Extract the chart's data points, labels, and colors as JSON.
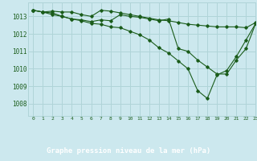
{
  "title": "Graphe pression niveau de la mer (hPa)",
  "bg_color": "#cce8ee",
  "grid_color": "#b0d4d8",
  "line_color": "#1a5c1a",
  "xlim": [
    -0.5,
    23
  ],
  "ylim": [
    1007.3,
    1013.8
  ],
  "yticks": [
    1008,
    1009,
    1010,
    1011,
    1012,
    1013
  ],
  "xticks": [
    0,
    1,
    2,
    3,
    4,
    5,
    6,
    7,
    8,
    9,
    10,
    11,
    12,
    13,
    14,
    15,
    16,
    17,
    18,
    19,
    20,
    21,
    22,
    23
  ],
  "series1": [
    1013.35,
    1013.25,
    1013.3,
    1013.25,
    1013.25,
    1013.1,
    1013.0,
    1013.35,
    1013.3,
    1013.2,
    1013.1,
    1013.0,
    1012.9,
    1012.8,
    1012.75,
    1012.65,
    1012.55,
    1012.5,
    1012.45,
    1012.4,
    1012.4,
    1012.4,
    1012.35,
    1012.65
  ],
  "series2": [
    1013.35,
    1013.25,
    1013.2,
    1013.0,
    1012.85,
    1012.8,
    1012.7,
    1012.8,
    1012.75,
    1013.1,
    1013.0,
    1012.95,
    1012.85,
    1012.75,
    1012.85,
    1011.15,
    1011.0,
    1010.5,
    1010.1,
    1009.7,
    1009.7,
    1010.5,
    1011.15,
    1012.6
  ],
  "series3": [
    1013.35,
    1013.25,
    1013.1,
    1013.0,
    1012.85,
    1012.75,
    1012.6,
    1012.55,
    1012.4,
    1012.35,
    1012.15,
    1011.95,
    1011.65,
    1011.2,
    1010.9,
    1010.45,
    1010.0,
    1008.75,
    1008.3,
    1009.65,
    1009.9,
    1010.7,
    1011.65,
    1012.6
  ]
}
